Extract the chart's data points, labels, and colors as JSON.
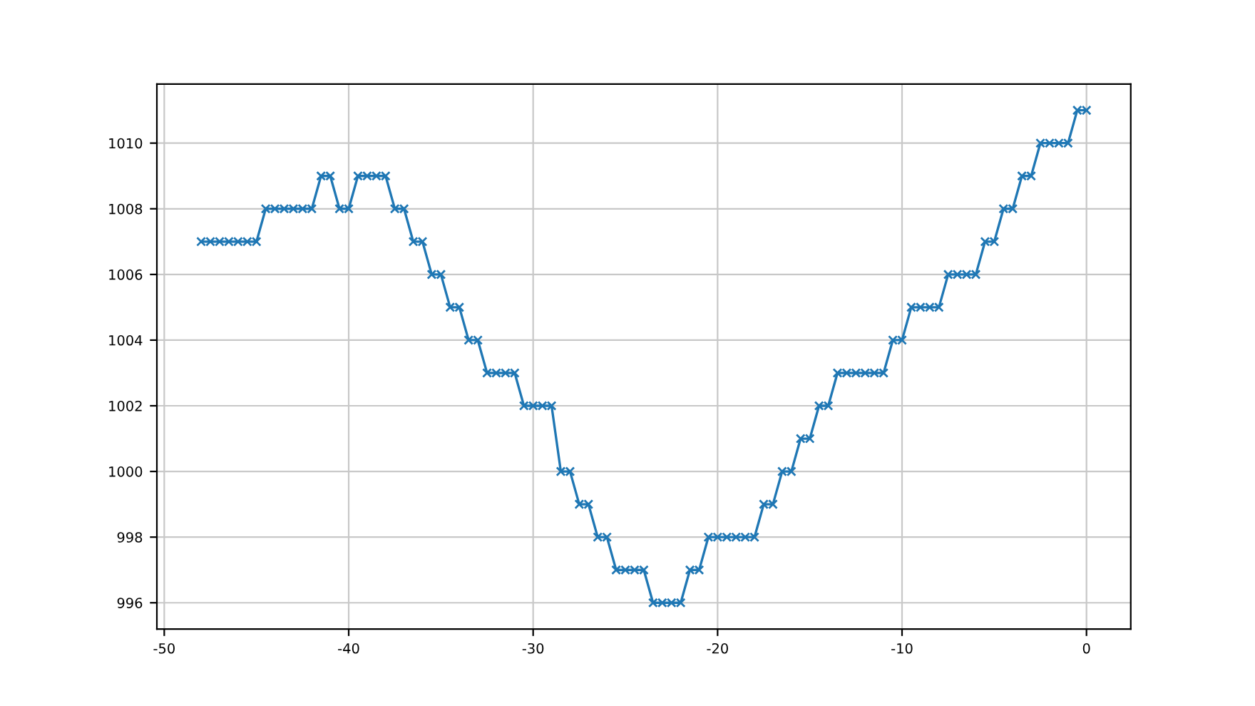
{
  "chart_data": {
    "type": "line",
    "x": [
      -48,
      -47.5,
      -47,
      -46.5,
      -46,
      -45.5,
      -45,
      -44.5,
      -44,
      -43.5,
      -43,
      -42.5,
      -42,
      -41.5,
      -41,
      -40.5,
      -40,
      -39.5,
      -39,
      -38.5,
      -38,
      -37.5,
      -37,
      -36.5,
      -36,
      -35.5,
      -35,
      -34.5,
      -34,
      -33.5,
      -33,
      -32.5,
      -32,
      -31.5,
      -31,
      -30.5,
      -30,
      -29.5,
      -29,
      -28.5,
      -28,
      -27.5,
      -27,
      -26.5,
      -26,
      -25.5,
      -25,
      -24.5,
      -24,
      -23.5,
      -23,
      -22.5,
      -22,
      -21.5,
      -21,
      -20.5,
      -20,
      -19.5,
      -19,
      -18.5,
      -18,
      -17.5,
      -17,
      -16.5,
      -16,
      -15.5,
      -15,
      -14.5,
      -14,
      -13.5,
      -13,
      -12.5,
      -12,
      -11.5,
      -11,
      -10.5,
      -10,
      -9.5,
      -9,
      -8.5,
      -8,
      -7.5,
      -7,
      -6.5,
      -6,
      -5.5,
      -5,
      -4.5,
      -4,
      -3.5,
      -3,
      -2.5,
      -2,
      -1.5,
      -1,
      -0.5,
      0
    ],
    "series": [
      {
        "color": "#1f77b4",
        "values": [
          1007,
          1007,
          1007,
          1007,
          1007,
          1007,
          1007,
          1008,
          1008,
          1008,
          1008,
          1008,
          1008,
          1009,
          1009,
          1008,
          1008,
          1009,
          1009,
          1009,
          1009,
          1008,
          1008,
          1007,
          1007,
          1006,
          1006,
          1005,
          1005,
          1004,
          1004,
          1003,
          1003,
          1003,
          1003,
          1002,
          1002,
          1002,
          1002,
          1000,
          1000,
          999,
          999,
          998,
          998,
          997,
          997,
          997,
          997,
          996,
          996,
          996,
          996,
          997,
          997,
          998,
          998,
          998,
          998,
          998,
          998,
          999,
          999,
          1000,
          1000,
          1001,
          1001,
          1002,
          1002,
          1003,
          1003,
          1003,
          1003,
          1003,
          1003,
          1004,
          1004,
          1005,
          1005,
          1005,
          1005,
          1006,
          1006,
          1006,
          1006,
          1007,
          1007,
          1008,
          1008,
          1009,
          1009,
          1010,
          1010,
          1010,
          1010,
          1011,
          1011
        ]
      }
    ],
    "xlim": [
      -50.4,
      2.4
    ],
    "ylim": [
      995.2,
      1011.8
    ],
    "xticks": [
      -50,
      -40,
      -30,
      -20,
      -10,
      0
    ],
    "yticks": [
      996,
      998,
      1000,
      1002,
      1004,
      1006,
      1008,
      1010
    ],
    "grid": true,
    "marker": "cross",
    "line_style": "solid"
  }
}
